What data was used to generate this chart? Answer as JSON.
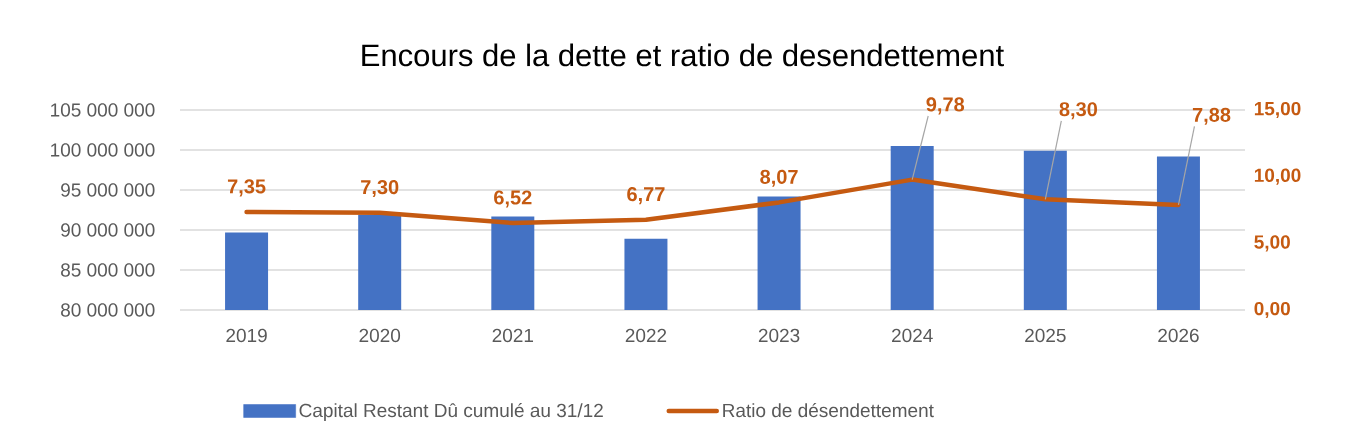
{
  "chart_data": {
    "type": "bar",
    "title": "Encours de la dette et ratio de desendettement",
    "categories": [
      "2019",
      "2020",
      "2021",
      "2022",
      "2023",
      "2024",
      "2025",
      "2026"
    ],
    "series": [
      {
        "name": "Capital Restant Dû cumulé au 31/12",
        "color": "#4472c4",
        "values": [
          89700000,
          91900000,
          91700000,
          88900000,
          94200000,
          100500000,
          99900000,
          99200000
        ]
      },
      {
        "name": "Ratio de désendettement",
        "type": "line",
        "axis": "y2",
        "color": "#c55a11",
        "values": [
          7.35,
          7.3,
          6.52,
          6.77,
          8.07,
          9.78,
          8.3,
          7.88
        ],
        "value_labels": [
          "7,35",
          "7,30",
          "6,52",
          "6,77",
          "8,07",
          "9,78",
          "8,30",
          "7,88"
        ]
      }
    ],
    "ylim": [
      80000000,
      105000000
    ],
    "yticks": [
      {
        "value": 80000000,
        "label": "80 000 000"
      },
      {
        "value": 85000000,
        "label": "85 000 000"
      },
      {
        "value": 90000000,
        "label": "90 000 000"
      },
      {
        "value": 95000000,
        "label": "95 000 000"
      },
      {
        "value": 100000000,
        "label": "100 000 000"
      },
      {
        "value": 105000000,
        "label": "105 000 000"
      }
    ],
    "y2lim": [
      0,
      15
    ],
    "y2ticks": [
      {
        "value": 0,
        "label": "0,00"
      },
      {
        "value": 5,
        "label": "5,00"
      },
      {
        "value": 10,
        "label": "10,00"
      },
      {
        "value": 15,
        "label": "15,00"
      }
    ],
    "grid": "y",
    "legend": "bottom",
    "line_style": "solid"
  }
}
